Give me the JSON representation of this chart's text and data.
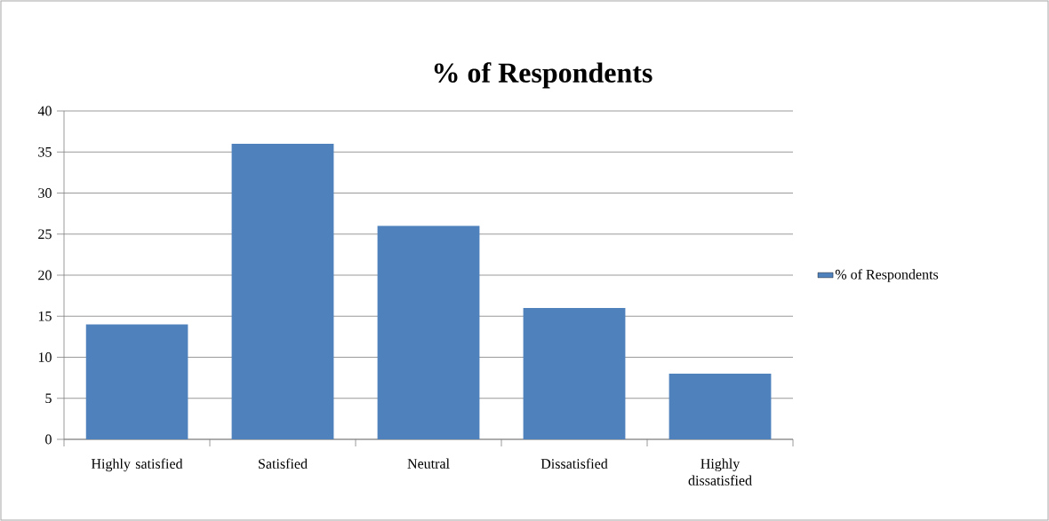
{
  "chart_data": {
    "type": "bar",
    "title": "% of  Respondents",
    "categories": [
      "Highly satisfied",
      "Satisfied",
      "Neutral",
      "Dissatisfied",
      "Highly dissatisfied"
    ],
    "series": [
      {
        "name": "% of Respondents",
        "color": "#4f81bd",
        "values": [
          14,
          36,
          26,
          16,
          8
        ]
      }
    ],
    "ylim": [
      0,
      40
    ],
    "yticks": [
      0,
      5,
      10,
      15,
      20,
      25,
      30,
      35,
      40
    ],
    "grid": "y",
    "legend": "right"
  }
}
